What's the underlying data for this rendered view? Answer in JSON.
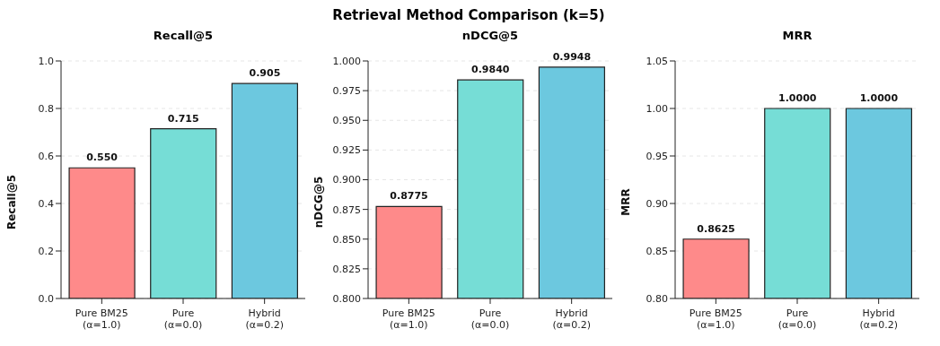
{
  "chart_data": [
    {
      "type": "other",
      "title": "Retrieval Method Comparison (k=5)"
    },
    {
      "type": "bar",
      "title": "Recall@5",
      "ylabel": "Recall@5",
      "categories": [
        "Pure BM25\n(α=1.0)",
        "Pure\n(α=0.0)",
        "Hybrid\n(α=0.2)"
      ],
      "values": [
        0.55,
        0.715,
        0.905
      ],
      "value_labels": [
        "0.550",
        "0.715",
        "0.905"
      ],
      "colors": [
        "#fe8a8a",
        "#76ddd6",
        "#6cc8df"
      ],
      "ylim": [
        0,
        1
      ],
      "yticks": [
        {
          "value": 0,
          "label": "0.0"
        },
        {
          "value": 0.2,
          "label": "0.2"
        },
        {
          "value": 0.4,
          "label": "0.4"
        },
        {
          "value": 0.6,
          "label": "0.6"
        },
        {
          "value": 0.8,
          "label": "0.8"
        },
        {
          "value": 1,
          "label": "1.0"
        }
      ],
      "grid": "y"
    },
    {
      "type": "bar",
      "title": "nDCG@5",
      "ylabel": "nDCG@5",
      "categories": [
        "Pure BM25\n(α=1.0)",
        "Pure\n(α=0.0)",
        "Hybrid\n(α=0.2)"
      ],
      "values": [
        0.8775,
        0.984,
        0.9948
      ],
      "value_labels": [
        "0.8775",
        "0.9840",
        "0.9948"
      ],
      "colors": [
        "#fe8a8a",
        "#76ddd6",
        "#6cc8df"
      ],
      "ylim": [
        0.8,
        1
      ],
      "yticks": [
        {
          "value": 0.8,
          "label": "0.800"
        },
        {
          "value": 0.825,
          "label": "0.825"
        },
        {
          "value": 0.85,
          "label": "0.850"
        },
        {
          "value": 0.875,
          "label": "0.875"
        },
        {
          "value": 0.9,
          "label": "0.900"
        },
        {
          "value": 0.925,
          "label": "0.925"
        },
        {
          "value": 0.95,
          "label": "0.950"
        },
        {
          "value": 0.975,
          "label": "0.975"
        },
        {
          "value": 1,
          "label": "1.000"
        }
      ],
      "grid": "y"
    },
    {
      "type": "bar",
      "title": "MRR",
      "ylabel": "MRR",
      "categories": [
        "Pure BM25\n(α=1.0)",
        "Pure\n(α=0.0)",
        "Hybrid\n(α=0.2)"
      ],
      "values": [
        0.8625,
        1,
        1
      ],
      "value_labels": [
        "0.8625",
        "1.0000",
        "1.0000"
      ],
      "colors": [
        "#fe8a8a",
        "#76ddd6",
        "#6cc8df"
      ],
      "ylim": [
        0.8,
        1.05
      ],
      "yticks": [
        {
          "value": 0.8,
          "label": "0.80"
        },
        {
          "value": 0.85,
          "label": "0.85"
        },
        {
          "value": 0.9,
          "label": "0.90"
        },
        {
          "value": 0.95,
          "label": "0.95"
        },
        {
          "value": 1,
          "label": "1.00"
        },
        {
          "value": 1.05,
          "label": "1.05"
        }
      ],
      "grid": "y"
    }
  ]
}
